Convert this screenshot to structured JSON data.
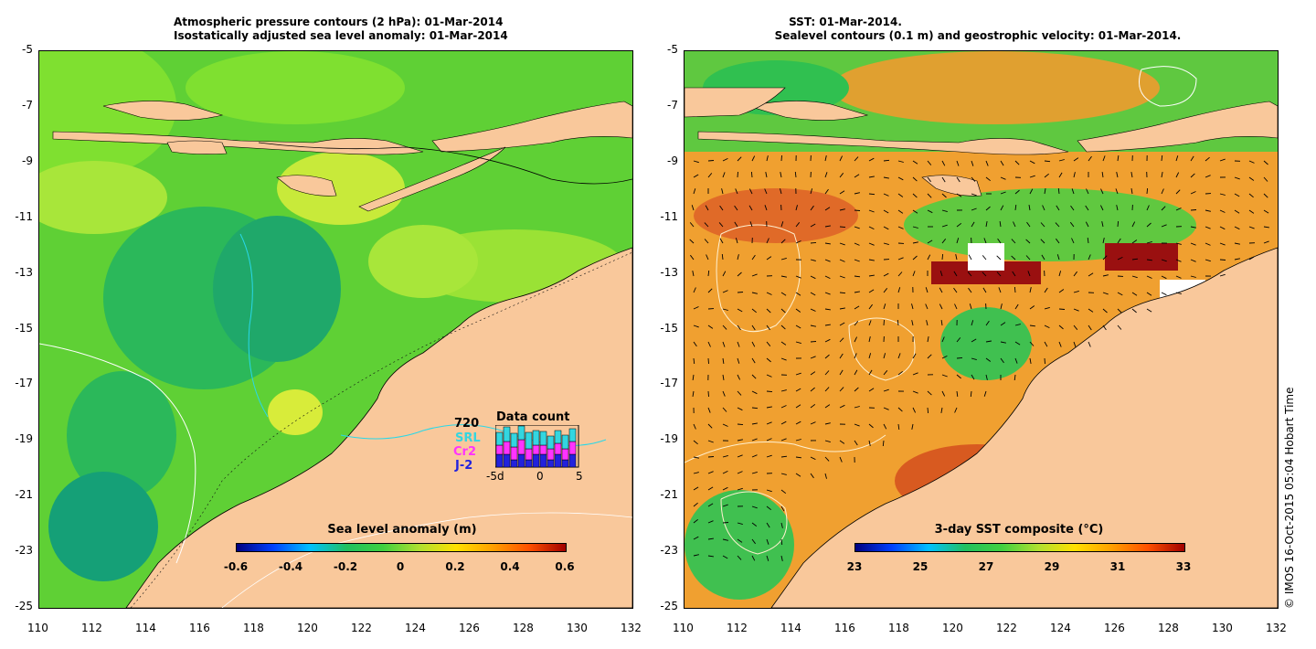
{
  "left_panel": {
    "title_line1": "Atmospheric pressure contours (2 hPa): 01-Mar-2014",
    "title_line2": "Isostatically adjusted sea level anomaly: 01-Mar-2014",
    "colorbar": {
      "title": "Sea level anomaly (m)",
      "labels": [
        "-0.6",
        "-0.4",
        "-0.2",
        "0",
        "0.2",
        "0.4",
        "0.6"
      ]
    },
    "data_count": {
      "title": "Data count",
      "max_label": "720",
      "series": [
        {
          "name": "SRL",
          "color": "#33d6e0"
        },
        {
          "name": "Cr2",
          "color": "#ff33ff"
        },
        {
          "name": "J-2",
          "color": "#2222dd"
        }
      ],
      "axis_labels": [
        "-5d",
        "0",
        "5"
      ]
    }
  },
  "right_panel": {
    "title_line1": "SST: 01-Mar-2014.",
    "title_line2": "Sealevel contours (0.1 m) and geostrophic velocity: 01-Mar-2014.",
    "colorbar": {
      "title": "3-day SST composite (°C)",
      "labels": [
        "23",
        "25",
        "27",
        "29",
        "31",
        "33"
      ]
    }
  },
  "axes": {
    "x_ticks": [
      "110",
      "112",
      "114",
      "116",
      "118",
      "120",
      "122",
      "124",
      "126",
      "128",
      "130",
      "132"
    ],
    "y_ticks": [
      "-5",
      "-7",
      "-9",
      "-11",
      "-13",
      "-15",
      "-17",
      "-19",
      "-21",
      "-23",
      "-25"
    ],
    "lon_range": [
      110,
      132
    ],
    "lat_range": [
      -25,
      -5
    ]
  },
  "copyright": "© IMOS 16-Oct-2015 05:04 Hobart Time",
  "colors": {
    "land": "#f9c89b",
    "ocean_left": "#5fd035",
    "ocean_right": "#f0a030"
  }
}
